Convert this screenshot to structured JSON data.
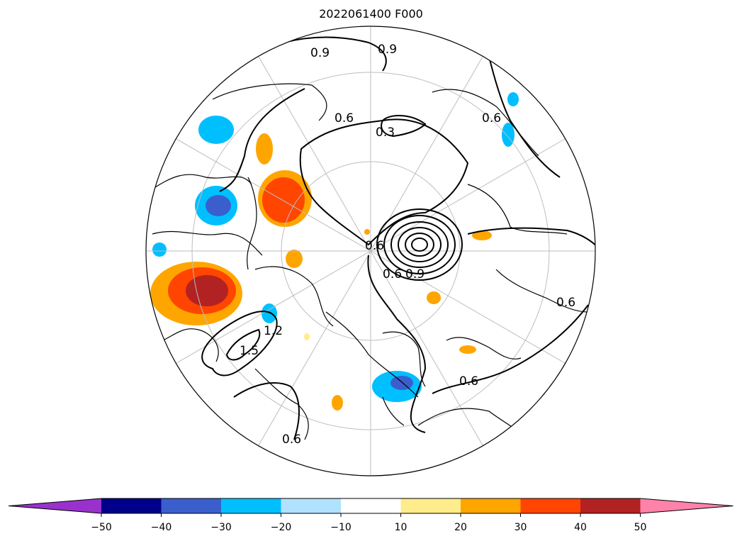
{
  "title": "2022061400 F000",
  "map": {
    "projection": "north-polar-stereographic",
    "contour_labels": [
      "0.9",
      "0.9",
      "0.6",
      "0.3",
      "0.6",
      "0.6",
      "0.6",
      "0.9",
      "1.2",
      "1.5",
      "0.6",
      "0.6",
      "0.6"
    ],
    "contour_interval": 0.3
  },
  "colorbar": {
    "extend": "both",
    "bins": [
      {
        "from": null,
        "to": -50,
        "color": "#9932cc"
      },
      {
        "from": -50,
        "to": -40,
        "color": "#00008b"
      },
      {
        "from": -40,
        "to": -30,
        "color": "#3a5fcd"
      },
      {
        "from": -30,
        "to": -20,
        "color": "#00bfff"
      },
      {
        "from": -20,
        "to": -10,
        "color": "#b0e2ff"
      },
      {
        "from": -10,
        "to": 10,
        "color": "#ffffff"
      },
      {
        "from": 10,
        "to": 20,
        "color": "#ffec8b"
      },
      {
        "from": 20,
        "to": 30,
        "color": "#ffa500"
      },
      {
        "from": 30,
        "to": 40,
        "color": "#ff4500"
      },
      {
        "from": 40,
        "to": 50,
        "color": "#b22222"
      },
      {
        "from": 50,
        "to": null,
        "color": "#ff82ab"
      }
    ],
    "tick_labels": [
      "−50",
      "−40",
      "−30",
      "−20",
      "−10",
      "10",
      "20",
      "30",
      "40",
      "50"
    ]
  }
}
